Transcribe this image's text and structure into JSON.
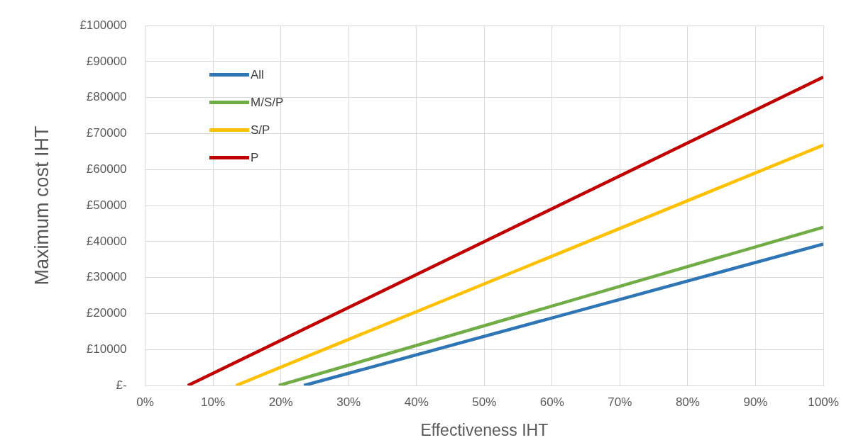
{
  "chart_data": {
    "type": "line",
    "xlabel": "Effectiveness IHT",
    "ylabel": "Maximum cost IHT",
    "series": [
      {
        "name": "All",
        "color": "#2e75b6",
        "x": [
          23.4,
          100
        ],
        "values": [
          0,
          39300
        ]
      },
      {
        "name": "M/S/P",
        "color": "#70ad47",
        "x": [
          19.7,
          100
        ],
        "values": [
          0,
          44000
        ]
      },
      {
        "name": "S/P",
        "color": "#ffc000",
        "x": [
          13.4,
          100
        ],
        "values": [
          0,
          66800
        ]
      },
      {
        "name": "P",
        "color": "#c00000",
        "x": [
          6.3,
          100
        ],
        "values": [
          0,
          85700
        ]
      }
    ],
    "xlim": [
      0,
      100
    ],
    "xticks": [
      {
        "value": 0,
        "label": "0%"
      },
      {
        "value": 10,
        "label": "10%"
      },
      {
        "value": 20,
        "label": "20%"
      },
      {
        "value": 30,
        "label": "30%"
      },
      {
        "value": 40,
        "label": "40%"
      },
      {
        "value": 50,
        "label": "50%"
      },
      {
        "value": 60,
        "label": "60%"
      },
      {
        "value": 70,
        "label": "70%"
      },
      {
        "value": 80,
        "label": "80%"
      },
      {
        "value": 90,
        "label": "90%"
      },
      {
        "value": 100,
        "label": "100%"
      }
    ],
    "ylim": [
      0,
      100000
    ],
    "yticks": [
      {
        "value": 0,
        "label": "£-"
      },
      {
        "value": 10000,
        "label": "£10000"
      },
      {
        "value": 20000,
        "label": "£20000"
      },
      {
        "value": 30000,
        "label": "£30000"
      },
      {
        "value": 40000,
        "label": "£40000"
      },
      {
        "value": 50000,
        "label": "£50000"
      },
      {
        "value": 60000,
        "label": "£60000"
      },
      {
        "value": 70000,
        "label": "£70000"
      },
      {
        "value": 80000,
        "label": "£80000"
      },
      {
        "value": 90000,
        "label": "£90000"
      },
      {
        "value": 100000,
        "label": "£100000"
      }
    ],
    "grid": true,
    "legend": "top left",
    "marker": "none",
    "line_style": "solid"
  }
}
